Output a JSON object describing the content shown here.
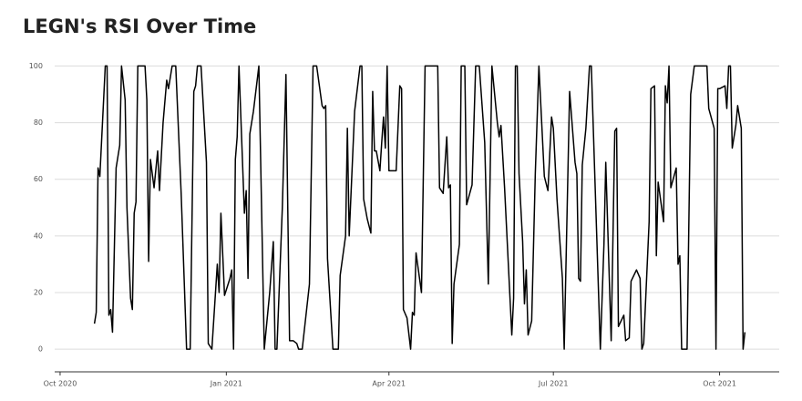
{
  "chart_data": {
    "type": "line",
    "title": "LEGN's RSI Over Time",
    "color": "#000000",
    "grid": true,
    "x": [
      19,
      20,
      21,
      22,
      25,
      26,
      27,
      28,
      29,
      31,
      33,
      34,
      36,
      37,
      39,
      40,
      41,
      42,
      43,
      47,
      48,
      49,
      50,
      52,
      54,
      55,
      57,
      59,
      60,
      62,
      64,
      67,
      70,
      72,
      74,
      75,
      76,
      78,
      81,
      82,
      84,
      87,
      88,
      89,
      91,
      94,
      95,
      96,
      97,
      98,
      99,
      102,
      103,
      104,
      105,
      107,
      110,
      113,
      116,
      118,
      119,
      120,
      123,
      125,
      127,
      129,
      131,
      132,
      134,
      138,
      140,
      142,
      145,
      146,
      147,
      148,
      151,
      154,
      155,
      158,
      159,
      160,
      163,
      166,
      167,
      168,
      170,
      172,
      173,
      174,
      175,
      177,
      178,
      179,
      180,
      181,
      182,
      186,
      188,
      189,
      190,
      192,
      194,
      195,
      196,
      197,
      200,
      202,
      209,
      210,
      212,
      214,
      215,
      216,
      217,
      218,
      221,
      222,
      224,
      225,
      228,
      230,
      232,
      235,
      237,
      239,
      242,
      243,
      244,
      246,
      247,
      250,
      251,
      252,
      253,
      254,
      256,
      257,
      258,
      259,
      261,
      263,
      265,
      268,
      270,
      272,
      273,
      275,
      278,
      279,
      282,
      285,
      286,
      287,
      288,
      289,
      291,
      293,
      294,
      296,
      299,
      301,
      302,
      305,
      307,
      308,
      309,
      312,
      313,
      315,
      316,
      319,
      321,
      322,
      323,
      326,
      327,
      329,
      330,
      331,
      334,
      335,
      336,
      337,
      338,
      341,
      342,
      343,
      344,
      347,
      349,
      351,
      358,
      359,
      362,
      363,
      364,
      365,
      368,
      369,
      370,
      371,
      372,
      374,
      375,
      377,
      378,
      379
    ],
    "values": [
      9,
      13,
      64,
      61,
      100,
      100,
      12,
      14,
      6,
      64,
      72,
      100,
      88,
      50,
      18,
      14,
      48,
      52,
      100,
      100,
      88,
      31,
      67,
      57,
      70,
      56,
      80,
      95,
      92,
      100,
      100,
      55,
      0,
      0,
      91,
      93,
      100,
      100,
      66,
      2,
      0,
      30,
      20,
      48,
      19,
      25,
      28,
      0,
      67,
      75,
      100,
      48,
      56,
      25,
      76,
      84,
      100,
      0,
      20,
      38,
      0,
      0,
      50,
      97,
      3,
      3,
      2,
      0,
      0,
      23,
      100,
      100,
      86,
      85,
      86,
      32,
      0,
      0,
      26,
      40,
      78,
      40,
      84,
      100,
      100,
      53,
      46,
      41,
      91,
      70,
      70,
      63,
      73,
      82,
      71,
      100,
      63,
      63,
      93,
      92,
      14,
      11,
      0,
      13,
      12,
      34,
      20,
      100,
      100,
      57,
      55,
      75,
      57,
      58,
      2,
      23,
      37,
      100,
      100,
      51,
      58,
      100,
      100,
      73,
      23,
      100,
      80,
      75,
      79,
      57,
      44,
      5,
      18,
      100,
      100,
      62,
      38,
      16,
      28,
      5,
      10,
      62,
      100,
      61,
      56,
      82,
      78,
      53,
      25,
      0,
      91,
      66,
      62,
      25,
      24,
      65,
      78,
      100,
      100,
      60,
      0,
      37,
      66,
      3,
      77,
      78,
      8,
      12,
      3,
      4,
      24,
      28,
      25,
      0,
      2,
      45,
      92,
      93,
      33,
      59,
      45,
      93,
      87,
      100,
      57,
      64,
      30,
      33,
      0,
      0,
      90,
      100,
      100,
      85,
      78,
      0,
      92,
      92,
      93,
      85,
      100,
      100,
      71,
      79,
      86,
      78,
      0,
      6
    ],
    "xlim": [
      -3,
      398
    ],
    "xticks": [
      {
        "value": 0,
        "label": "Oct 2020"
      },
      {
        "value": 92,
        "label": "Jan 2021"
      },
      {
        "value": 182,
        "label": "Apr 2021"
      },
      {
        "value": 273,
        "label": "Jul 2021"
      },
      {
        "value": 365,
        "label": "Oct 2021"
      }
    ],
    "ylim": [
      -8,
      104
    ],
    "yticks": [
      0,
      20,
      40,
      60,
      80,
      100
    ]
  }
}
